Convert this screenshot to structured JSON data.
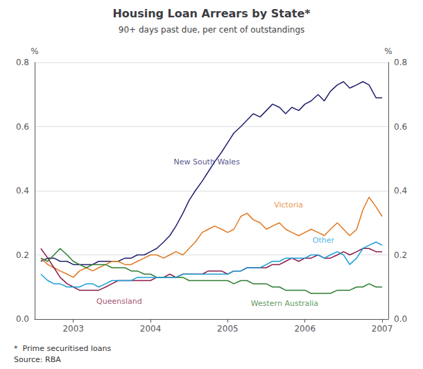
{
  "chart_data": {
    "type": "line",
    "title": "Housing Loan Arrears by State*",
    "subtitle": "90+ days past due, per cent of outstandings",
    "ylabel": "%",
    "y2label": "%",
    "footnotes": [
      "*  Prime securitised loans",
      "Source: RBA"
    ],
    "x": [
      2002.58,
      2002.67,
      2002.75,
      2002.83,
      2002.92,
      2003.0,
      2003.08,
      2003.17,
      2003.25,
      2003.33,
      2003.42,
      2003.5,
      2003.58,
      2003.67,
      2003.75,
      2003.83,
      2003.92,
      2004.0,
      2004.08,
      2004.17,
      2004.25,
      2004.33,
      2004.42,
      2004.5,
      2004.58,
      2004.67,
      2004.75,
      2004.83,
      2004.92,
      2005.0,
      2005.08,
      2005.17,
      2005.25,
      2005.33,
      2005.42,
      2005.5,
      2005.58,
      2005.67,
      2005.75,
      2005.83,
      2005.92,
      2006.0,
      2006.08,
      2006.17,
      2006.25,
      2006.33,
      2006.42,
      2006.5,
      2006.58,
      2006.67,
      2006.75,
      2006.83,
      2006.92,
      2007.0
    ],
    "series": [
      {
        "name": "New South Wales",
        "color": "#1f1f6e",
        "values": [
          0.18,
          0.19,
          0.19,
          0.18,
          0.18,
          0.17,
          0.17,
          0.17,
          0.17,
          0.18,
          0.18,
          0.18,
          0.18,
          0.19,
          0.19,
          0.2,
          0.2,
          0.21,
          0.22,
          0.24,
          0.26,
          0.29,
          0.33,
          0.37,
          0.4,
          0.43,
          0.46,
          0.49,
          0.52,
          0.55,
          0.58,
          0.6,
          0.62,
          0.64,
          0.63,
          0.65,
          0.67,
          0.66,
          0.64,
          0.66,
          0.65,
          0.67,
          0.68,
          0.7,
          0.68,
          0.71,
          0.73,
          0.74,
          0.72,
          0.73,
          0.74,
          0.73,
          0.69,
          0.69
        ]
      },
      {
        "name": "Victoria",
        "color": "#e07820",
        "values": [
          0.19,
          0.17,
          0.16,
          0.15,
          0.14,
          0.13,
          0.15,
          0.16,
          0.15,
          0.16,
          0.17,
          0.18,
          0.18,
          0.17,
          0.17,
          0.18,
          0.19,
          0.2,
          0.2,
          0.19,
          0.2,
          0.21,
          0.2,
          0.22,
          0.24,
          0.27,
          0.28,
          0.29,
          0.28,
          0.27,
          0.28,
          0.32,
          0.33,
          0.31,
          0.3,
          0.28,
          0.29,
          0.3,
          0.28,
          0.27,
          0.26,
          0.27,
          0.28,
          0.27,
          0.26,
          0.28,
          0.3,
          0.28,
          0.26,
          0.28,
          0.34,
          0.38,
          0.35,
          0.32
        ]
      },
      {
        "name": "Queensland",
        "color": "#8b1a4a",
        "values": [
          0.22,
          0.19,
          0.16,
          0.13,
          0.11,
          0.1,
          0.09,
          0.09,
          0.09,
          0.09,
          0.1,
          0.11,
          0.12,
          0.12,
          0.12,
          0.12,
          0.12,
          0.12,
          0.13,
          0.13,
          0.14,
          0.13,
          0.14,
          0.14,
          0.14,
          0.14,
          0.15,
          0.15,
          0.15,
          0.14,
          0.15,
          0.15,
          0.16,
          0.16,
          0.16,
          0.16,
          0.17,
          0.17,
          0.18,
          0.19,
          0.18,
          0.19,
          0.19,
          0.2,
          0.19,
          0.19,
          0.2,
          0.21,
          0.2,
          0.21,
          0.22,
          0.22,
          0.21,
          0.21
        ]
      },
      {
        "name": "Western Australia",
        "color": "#2e7d32",
        "values": [
          0.19,
          0.18,
          0.2,
          0.22,
          0.2,
          0.18,
          0.17,
          0.16,
          0.17,
          0.17,
          0.17,
          0.16,
          0.16,
          0.16,
          0.15,
          0.15,
          0.14,
          0.14,
          0.13,
          0.13,
          0.13,
          0.13,
          0.13,
          0.12,
          0.12,
          0.12,
          0.12,
          0.12,
          0.12,
          0.12,
          0.11,
          0.12,
          0.12,
          0.11,
          0.11,
          0.11,
          0.1,
          0.1,
          0.09,
          0.09,
          0.09,
          0.09,
          0.08,
          0.08,
          0.08,
          0.08,
          0.09,
          0.09,
          0.09,
          0.1,
          0.1,
          0.11,
          0.1,
          0.1
        ]
      },
      {
        "name": "Other",
        "color": "#1b9ed8",
        "values": [
          0.14,
          0.12,
          0.11,
          0.11,
          0.1,
          0.1,
          0.1,
          0.11,
          0.11,
          0.1,
          0.11,
          0.12,
          0.12,
          0.12,
          0.12,
          0.13,
          0.13,
          0.13,
          0.13,
          0.13,
          0.13,
          0.13,
          0.14,
          0.14,
          0.14,
          0.14,
          0.14,
          0.14,
          0.14,
          0.14,
          0.15,
          0.15,
          0.16,
          0.16,
          0.16,
          0.17,
          0.18,
          0.18,
          0.19,
          0.19,
          0.19,
          0.19,
          0.2,
          0.2,
          0.19,
          0.2,
          0.21,
          0.2,
          0.17,
          0.19,
          0.22,
          0.23,
          0.24,
          0.23
        ]
      }
    ],
    "annotations": [
      {
        "text": "New South Wales",
        "x": 2004.3,
        "y": 0.49,
        "color": "#1f1f6e"
      },
      {
        "text": "Victoria",
        "x": 2005.6,
        "y": 0.355,
        "color": "#e07820"
      },
      {
        "text": "Queensland",
        "x": 2003.3,
        "y": 0.055,
        "color": "#8b1a4a"
      },
      {
        "text": "Western Australia",
        "x": 2005.3,
        "y": 0.048,
        "color": "#2e7d32"
      },
      {
        "text": "Other",
        "x": 2006.1,
        "y": 0.245,
        "color": "#1b9ed8"
      }
    ],
    "xlim": [
      2002.5,
      2007.08
    ],
    "xticks": [
      2003,
      2004,
      2005,
      2006,
      2007
    ],
    "ylim": [
      0.0,
      0.8
    ],
    "yticks": [
      {
        "value": 0.0,
        "label": "0.0"
      },
      0.2,
      0.4,
      0.6,
      0.8
    ],
    "y2lim": [
      0.0,
      0.8
    ],
    "y2ticks": [
      {
        "value": 0.0,
        "label": "0.0"
      },
      0.2,
      0.4,
      0.6,
      0.8
    ],
    "grid": true
  }
}
